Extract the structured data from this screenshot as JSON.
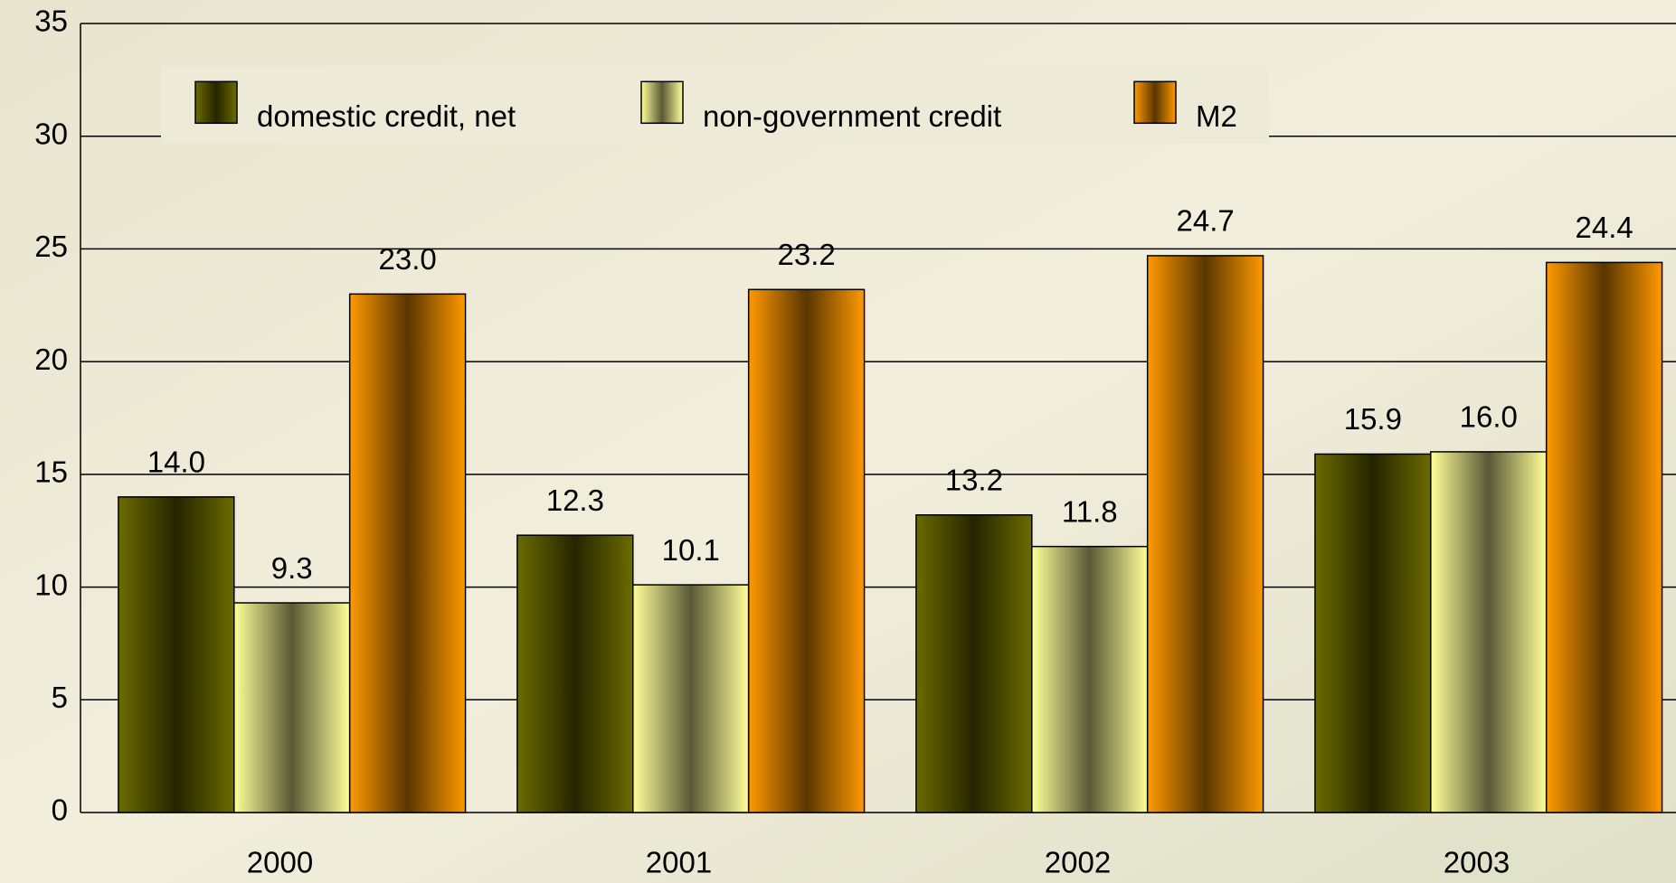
{
  "chart_data": {
    "type": "bar",
    "categories": [
      "2000",
      "2001",
      "2002",
      "2003"
    ],
    "series": [
      {
        "name": "domestic credit, net",
        "color": "#6b6b00",
        "values": [
          14.0,
          12.3,
          13.2,
          15.9
        ],
        "value_labels": [
          "14.0",
          "12.3",
          "13.2",
          "15.9"
        ]
      },
      {
        "name": "non-government credit",
        "color": "#ffff99",
        "values": [
          9.3,
          10.1,
          11.8,
          16.0
        ],
        "value_labels": [
          "9.3",
          "10.1",
          "11.8",
          "16.0"
        ]
      },
      {
        "name": "M2",
        "color": "#ff9900",
        "values": [
          23.0,
          23.2,
          24.7,
          24.4
        ],
        "value_labels": [
          "23.0",
          "23.2",
          "24.7",
          "24.4"
        ]
      }
    ],
    "ylim": [
      0,
      35
    ],
    "yticks": [
      0,
      5,
      10,
      15,
      20,
      25,
      30,
      35
    ],
    "grid": true,
    "legend": "top"
  }
}
